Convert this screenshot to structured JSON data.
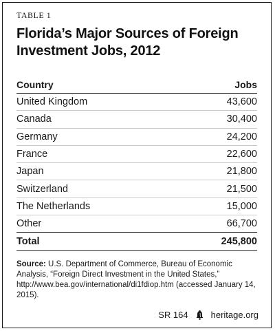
{
  "table_label": "TABLE 1",
  "title": "Florida’s Major Sources of Foreign Investment Jobs, 2012",
  "chart_data": {
    "type": "table",
    "columns": [
      "Country",
      "Jobs"
    ],
    "rows": [
      {
        "country": "United Kingdom",
        "jobs": "43,600"
      },
      {
        "country": "Canada",
        "jobs": "30,400"
      },
      {
        "country": "Germany",
        "jobs": "24,200"
      },
      {
        "country": "France",
        "jobs": "22,600"
      },
      {
        "country": "Japan",
        "jobs": "21,800"
      },
      {
        "country": "Switzerland",
        "jobs": "21,500"
      },
      {
        "country": "The Netherlands",
        "jobs": "15,000"
      },
      {
        "country": "Other",
        "jobs": "66,700"
      }
    ],
    "total": {
      "label": "Total",
      "jobs": "245,800"
    }
  },
  "source": {
    "label": "Source:",
    "text": "U.S. Department of Commerce, Bureau of Economic Analysis, “Foreign Direct Investment in the United States,” http://www.bea.gov/international/di1fdiop.htm (accessed January 14, 2015)."
  },
  "footer": {
    "report": "SR 164",
    "icon": "liberty-bell-icon",
    "site": "heritage.org"
  }
}
